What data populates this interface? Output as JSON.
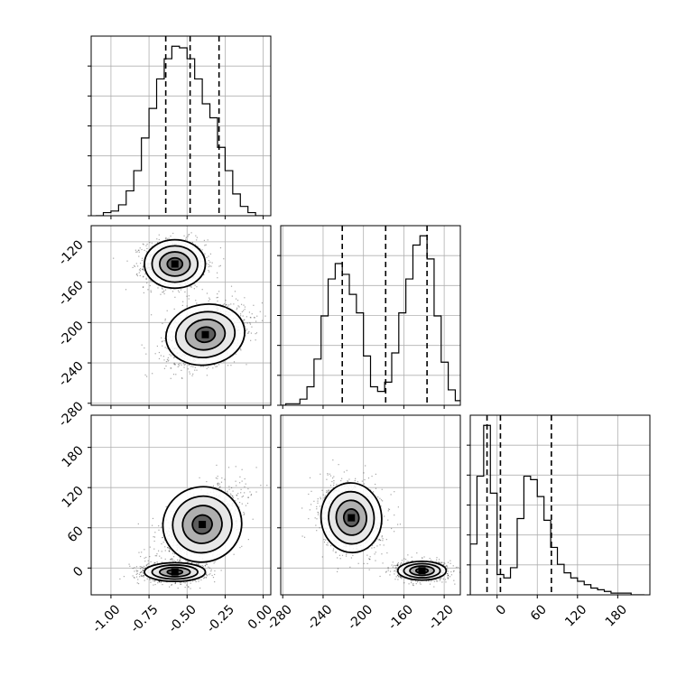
{
  "chart_data": {
    "type": "scatter",
    "plot_kind": "corner",
    "grid": true,
    "parameters": [
      "p0",
      "p1",
      "p2"
    ],
    "ranges": {
      "p0": [
        -1.13,
        0.05
      ],
      "p1": [
        -282,
        -104
      ],
      "p2": [
        -40,
        228
      ]
    },
    "tick_labels": {
      "p0": [
        "-1.00",
        "-0.75",
        "-0.50",
        "-0.25",
        "0.00"
      ],
      "p1": [
        "-280",
        "-240",
        "-200",
        "-160",
        "-120"
      ],
      "p2": [
        "0",
        "60",
        "120",
        "180"
      ]
    },
    "quantiles": {
      "p0": [
        -0.64,
        -0.48,
        -0.29
      ],
      "p1": [
        -221,
        -178,
        -137
      ],
      "p2": [
        -15,
        5,
        81
      ]
    },
    "histograms": [
      {
        "param": "p0",
        "bins": [
          -1.1,
          -1.05,
          -1.0,
          -0.95,
          -0.9,
          -0.85,
          -0.8,
          -0.75,
          -0.7,
          -0.65,
          -0.6,
          -0.55,
          -0.5,
          -0.45,
          -0.4,
          -0.35,
          -0.3,
          -0.25,
          -0.2,
          -0.15,
          -0.1,
          -0.05,
          0.0
        ],
        "counts": [
          0,
          2,
          3,
          7,
          16,
          29,
          50,
          69,
          88,
          101,
          109,
          108,
          101,
          88,
          72,
          63,
          44,
          29,
          14,
          6,
          2,
          0
        ]
      },
      {
        "param": "p1",
        "bins": [
          -284,
          -277,
          -270,
          -263,
          -256,
          -249,
          -242,
          -235,
          -228,
          -221,
          -214,
          -207,
          -200,
          -193,
          -186,
          -179,
          -172,
          -165,
          -158,
          -151,
          -144,
          -137,
          -130,
          -123,
          -116,
          -109,
          -102
        ],
        "counts": [
          0,
          1,
          1,
          4,
          12,
          30,
          58,
          82,
          92,
          85,
          72,
          60,
          32,
          12,
          9,
          15,
          34,
          60,
          82,
          104,
          110,
          95,
          58,
          28,
          10,
          3
        ]
      },
      {
        "param": "p2",
        "bins": [
          -40,
          -30,
          -20,
          -10,
          0,
          10,
          20,
          30,
          40,
          50,
          60,
          70,
          80,
          90,
          100,
          110,
          120,
          130,
          140,
          150,
          160,
          170,
          180,
          190,
          200,
          210,
          220
        ],
        "counts": [
          30,
          70,
          100,
          60,
          12,
          10,
          16,
          45,
          70,
          68,
          58,
          44,
          28,
          18,
          13,
          10,
          8,
          6,
          4,
          3,
          2,
          1,
          1,
          1,
          0,
          0
        ]
      }
    ],
    "clusters": {
      "p1_vs_p0": [
        {
          "center": [
            -0.58,
            -142
          ],
          "sigma": [
            0.1,
            12
          ],
          "rho": 0
        },
        {
          "center": [
            -0.38,
            -212
          ],
          "sigma": [
            0.13,
            15
          ],
          "rho": 0.35
        }
      ],
      "p2_vs_p0": [
        {
          "center": [
            -0.58,
            -6
          ],
          "sigma": [
            0.1,
            7
          ],
          "rho": 0
        },
        {
          "center": [
            -0.4,
            65
          ],
          "sigma": [
            0.13,
            28
          ],
          "rho": 0.55
        }
      ],
      "p2_vs_p1": [
        {
          "center": [
            -142,
            -4
          ],
          "sigma": [
            12,
            7
          ],
          "rho": 0
        },
        {
          "center": [
            -212,
            75
          ],
          "sigma": [
            15,
            26
          ],
          "rho": -0.15
        }
      ]
    },
    "colors": {
      "points": "#000000",
      "contour": "#000000",
      "grid": "#b0b0b0",
      "quantile_line": "#000000"
    }
  }
}
